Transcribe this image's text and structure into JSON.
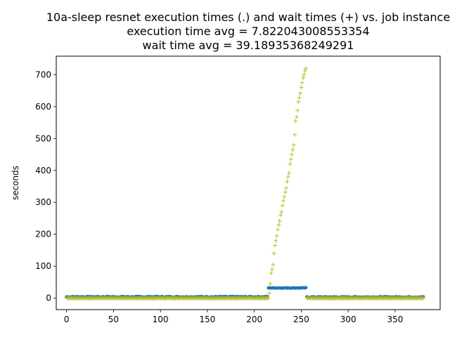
{
  "chart_data": {
    "type": "scatter",
    "title_lines": [
      "10a-sleep resnet execution times (.) and wait times (+) vs. job instance",
      "execution time avg = 7.822043008553354",
      "wait time avg = 39.18935368249291"
    ],
    "xlabel": "",
    "ylabel": "seconds",
    "xlim": [
      -11,
      398
    ],
    "ylim": [
      -36,
      758
    ],
    "xticks": [
      0,
      50,
      100,
      150,
      200,
      250,
      300,
      350
    ],
    "yticks": [
      0,
      100,
      200,
      300,
      400,
      500,
      600,
      700
    ],
    "grid": false,
    "colors": {
      "execution": "#1f77b4",
      "wait": "#bcbd22"
    },
    "series": [
      {
        "marker": "dot",
        "segments": [
          {
            "x_start": 0,
            "x_end": 214,
            "y": 4,
            "jitter": 1.6
          },
          {
            "x_start": 215,
            "x_end": 255,
            "y": 32,
            "jitter": 1.0
          },
          {
            "x_start": 256,
            "x_end": 380,
            "y": 3.5,
            "jitter": 1.4
          }
        ]
      },
      {
        "marker": "plus",
        "segments": [
          {
            "x_start": 0,
            "x_end": 215,
            "y": 0,
            "jitter": 0.6
          },
          {
            "x_start": 256,
            "x_end": 380,
            "y": 0,
            "jitter": 0.6
          }
        ],
        "ramp": {
          "x": [
            216,
            217,
            218,
            219,
            220,
            221,
            222,
            223,
            224,
            225,
            226,
            227,
            228,
            229,
            230,
            231,
            232,
            233,
            234,
            235,
            236,
            237,
            238,
            239,
            240,
            241,
            242,
            243,
            244,
            245,
            246,
            247,
            248,
            249,
            250,
            251,
            252,
            253,
            254,
            255
          ],
          "y": [
            15,
            45,
            78,
            90,
            105,
            140,
            165,
            180,
            195,
            215,
            230,
            242,
            260,
            270,
            290,
            305,
            318,
            332,
            345,
            365,
            380,
            392,
            420,
            435,
            450,
            465,
            480,
            512,
            555,
            568,
            588,
            615,
            628,
            642,
            660,
            675,
            690,
            700,
            712,
            720
          ]
        }
      }
    ]
  }
}
